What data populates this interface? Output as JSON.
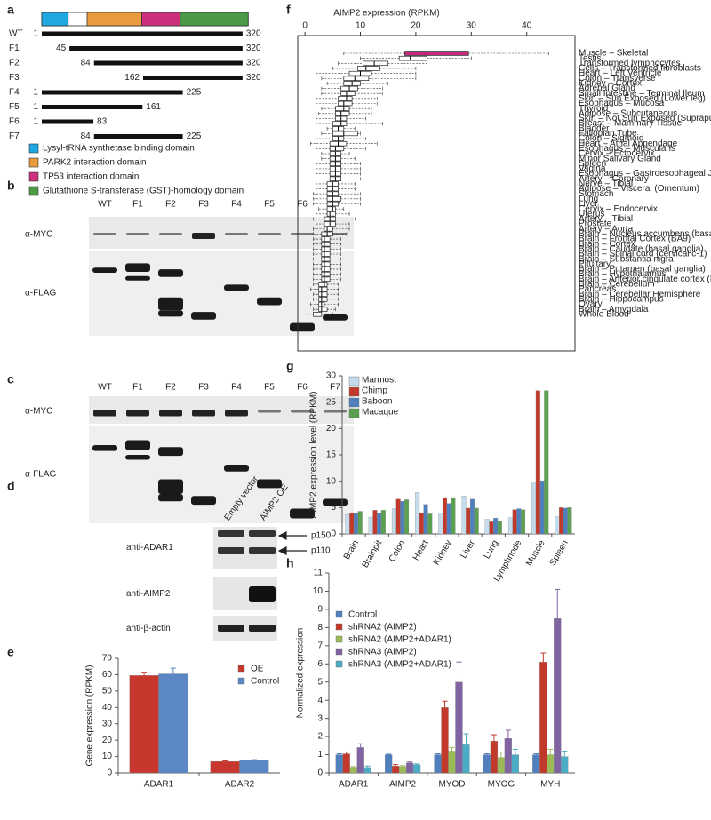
{
  "panel_labels": [
    "a",
    "b",
    "c",
    "d",
    "e",
    "f",
    "g",
    "h"
  ],
  "domain_map": {
    "domains": [
      {
        "name": "Lysyl-tRNA synthetase binding domain",
        "color": "#1ea7e1",
        "start": 1,
        "end": 43
      },
      {
        "name": "PARK2 interaction domain",
        "color": "#e89a3c",
        "start": 73,
        "end": 160
      },
      {
        "name": "TP53 interaction domain",
        "color": "#cc2f7c",
        "start": 160,
        "end": 221
      },
      {
        "name": "Glutathione S-transferase (GST)-homology domain",
        "color": "#4c9a47",
        "start": 221,
        "end": 329
      }
    ],
    "constructs": [
      {
        "name": "WT",
        "start": 1,
        "end": 320
      },
      {
        "name": "F1",
        "start": 45,
        "end": 320
      },
      {
        "name": "F2",
        "start": 84,
        "end": 320
      },
      {
        "name": "F3",
        "start": 162,
        "end": 320
      },
      {
        "name": "F4",
        "start": 1,
        "end": 225
      },
      {
        "name": "F5",
        "start": 1,
        "end": 161
      },
      {
        "name": "F6",
        "start": 1,
        "end": 83
      },
      {
        "name": "F7",
        "start": 84,
        "end": 225
      }
    ]
  },
  "blots": [
    {
      "lanes": [
        "WT",
        "F1",
        "F2",
        "F3",
        "F4",
        "F5",
        "F6",
        "F7"
      ],
      "rows": [
        "α-MYC",
        "α-FLAG"
      ]
    },
    {
      "lanes": [
        "WT",
        "F1",
        "F2",
        "F3",
        "F4",
        "F5",
        "F6",
        "F7"
      ],
      "rows": [
        "α-MYC",
        "α-FLAG"
      ]
    }
  ],
  "blot_d": {
    "conditions": [
      "Empty vector",
      "AIMP2 OE"
    ],
    "rows": [
      "anti-ADAR1",
      "anti-AIMP2",
      "anti-β-actin"
    ],
    "bands": [
      "p150",
      "p110"
    ]
  },
  "chart_data": [
    {
      "type": "bar",
      "ylabel": "Gene expression (RPKM)",
      "categories": [
        "ADAR1",
        "ADAR2"
      ],
      "series": [
        {
          "name": "OE",
          "color": "#c8372d",
          "values": [
            59.5,
            7.0
          ],
          "errors": [
            2,
            0.3
          ]
        },
        {
          "name": "Control",
          "color": "#5b88c4",
          "values": [
            60.5,
            7.8
          ],
          "errors": [
            3.5,
            0.3
          ]
        }
      ],
      "ylim": [
        0,
        70
      ],
      "yticks": [
        0,
        10,
        20,
        30,
        40,
        50,
        60,
        70
      ],
      "legend": "upper right"
    },
    {
      "type": "box",
      "xlabel": "AIMP2 expression (RPKM)",
      "categories": [
        "Muscle – Skeletal",
        "Testis",
        "Transformed lymphocytes",
        "Cells – Transformed fibroblasts",
        "Heart – Left Ventricle",
        "Colon – Transverse",
        "Kidney – Cortex",
        "Adrenal Gland",
        "Small Intestine – Terminal Ileum",
        "Skin – Sun Exposed (Lower leg)",
        "Esophagus – Mucosa",
        "Thyroid",
        "Adipose – Subcutaneous",
        "Skin – Not Sun Exposed (Suprapubic)",
        "Breast – Mammary Tissue",
        "Bladder",
        "Fallopian Tube",
        "Colon – Sigmoid",
        "Heart – Atrial Appendage",
        "Esophagus – Muscularis",
        "Cervix – Ectocervix",
        "Minor Salivary Gland",
        "Spleen",
        "Vagina",
        "Esophagus – Gastroesophageal Junction",
        "Artery – Coronary",
        "Nerve – Tibial",
        "Adipose – Visceral (Omentum)",
        "Stomach",
        "Lung",
        "Liver",
        "Cervix – Endocervix",
        "Uterus",
        "Artery – Tibial",
        "Prostate",
        "Artery – Aorta",
        "Brain – Nucleus accumbens (basal ganglia)",
        "Brain – Frontal Cortex (BA9)",
        "Brain – Cortex",
        "Brain – Caudate (basal ganglia)",
        "Brain – Spinal cord (cervical c-1)",
        "Brain – Substantia nigra",
        "Pituitary",
        "Brain – Putamen (basal ganglia)",
        "Brain – Hypothalamus",
        "Brain – Anterior cingulate cortex (BA24)",
        "Brain – Cerebellum",
        "Pancreas",
        "Brain – Cerebellar Hemisphere",
        "Brain – Hippocampus",
        "Ovary",
        "Brain – Amygdala",
        "Whole Blood"
      ],
      "whisker_low": [
        7,
        10,
        6,
        5,
        2,
        3,
        4,
        3,
        3,
        2,
        2,
        3,
        2.5,
        2,
        2,
        4,
        3,
        2,
        1,
        2,
        3,
        3,
        2,
        2,
        2,
        2,
        2,
        2,
        1.5,
        1.5,
        1.5,
        2.5,
        2,
        1.5,
        2,
        1.5,
        1.5,
        1.5,
        1.5,
        1.5,
        1.5,
        1.5,
        1.5,
        1.5,
        1.5,
        1.5,
        1.5,
        1,
        1.5,
        1.5,
        1,
        1.5,
        0.5
      ],
      "q1": [
        18,
        17,
        10.5,
        9.5,
        8,
        7,
        7,
        6.5,
        6.5,
        6,
        6,
        5.5,
        5.5,
        5.5,
        5,
        5,
        5,
        5,
        4.5,
        4.5,
        4.5,
        4.5,
        4.5,
        4.5,
        4.5,
        4.5,
        4,
        4,
        4,
        4,
        4,
        4,
        4,
        3.5,
        3.5,
        3.5,
        3,
        3,
        3,
        3,
        3,
        3,
        3,
        3,
        3,
        3,
        2.5,
        2.5,
        2.5,
        2.5,
        2.5,
        2.5,
        1.5
      ],
      "median": [
        22,
        19,
        12.5,
        11,
        10,
        9,
        8.5,
        8,
        7.5,
        7.5,
        7,
        7,
        6.5,
        6.5,
        6.5,
        6,
        7,
        6,
        6,
        5.5,
        5.5,
        5.5,
        5.5,
        5.5,
        5.5,
        5.5,
        5,
        5,
        5,
        5,
        5,
        5,
        4.5,
        4.5,
        4.5,
        4,
        4,
        3.5,
        3.5,
        3.5,
        3.5,
        3.5,
        3.5,
        3.5,
        3.5,
        3.5,
        3.5,
        3,
        3,
        3,
        3,
        3,
        2
      ],
      "q3": [
        29.5,
        22,
        15,
        13.5,
        12,
        11.5,
        10,
        9.5,
        9,
        8.5,
        8.5,
        8,
        8,
        7.5,
        7.5,
        7,
        9.5,
        7,
        7.5,
        7,
        6.5,
        6.5,
        6.5,
        6.5,
        6.5,
        6.5,
        6,
        6,
        6,
        6.5,
        6,
        5.5,
        5.5,
        5.5,
        5.5,
        5,
        5,
        4.5,
        4.5,
        4.5,
        4.5,
        4.5,
        4.5,
        4.5,
        4.5,
        4.5,
        4,
        4,
        4,
        4,
        3.5,
        4,
        3
      ],
      "whisker_high": [
        44,
        30,
        22,
        20,
        20,
        20,
        15,
        14,
        14,
        13,
        13,
        12,
        12,
        11,
        14,
        9,
        10,
        11,
        13,
        11,
        8,
        9,
        10,
        10,
        10,
        10,
        9,
        9,
        10,
        10,
        10,
        7,
        8,
        9,
        8,
        8,
        7.5,
        6.5,
        6.5,
        6.5,
        6.5,
        6.5,
        6.5,
        6.5,
        6.5,
        6.5,
        6,
        6,
        6,
        6,
        6,
        5.5,
        5
      ],
      "xlim": [
        -1.3,
        48.7
      ],
      "xticks": [
        0,
        10,
        20,
        30,
        40
      ],
      "box_color": "#ffffff",
      "highlight_category": "Muscle – Skeletal",
      "highlight_color": "#c8287f"
    },
    {
      "type": "bar",
      "ylabel": "AIMP2 expression level (RPKM)",
      "categories": [
        "Brain",
        "Brainpit",
        "Colon",
        "Heart",
        "Kidney",
        "Liver",
        "Lung",
        "Lymphnode",
        "Muscle",
        "Spleen"
      ],
      "series": [
        {
          "name": "Marmost",
          "color": "#c5dced",
          "values": [
            3.7,
            3.2,
            4.8,
            7.9,
            3.9,
            7.2,
            2.8,
            3.1,
            9.9,
            3.3
          ]
        },
        {
          "name": "Chimp",
          "color": "#c0392b",
          "values": [
            3.9,
            4.5,
            6.6,
            3.9,
            6.9,
            4.9,
            2.3,
            4.6,
            27.2,
            5.0
          ]
        },
        {
          "name": "Baboon",
          "color": "#4f7fbd",
          "values": [
            4.0,
            3.9,
            6.2,
            5.6,
            5.8,
            6.6,
            3.0,
            4.8,
            10.1,
            4.9
          ]
        },
        {
          "name": "Macaque",
          "color": "#5aa050",
          "values": [
            4.3,
            4.5,
            6.5,
            3.8,
            6.9,
            4.9,
            2.5,
            4.6,
            27.2,
            5.0
          ]
        }
      ],
      "ylim": [
        0,
        30
      ],
      "yticks": [
        0,
        5,
        10,
        15,
        20,
        25,
        30
      ],
      "legend": "upper left",
      "highlight_category": "Muscle",
      "highlight_color": "#c8287f"
    },
    {
      "type": "bar",
      "ylabel": "Normalized expression",
      "categories": [
        "ADAR1",
        "AIMP2",
        "MYOD",
        "MYOG",
        "MYH"
      ],
      "series": [
        {
          "name": "Control",
          "color": "#4f7fbd",
          "values": [
            1,
            1,
            1,
            1,
            1
          ],
          "errors": [
            0.05,
            0.03,
            0.05,
            0.05,
            0.05
          ]
        },
        {
          "name": "shRNA2 (AIMP2)",
          "color": "#c0392b",
          "values": [
            1.05,
            0.38,
            3.6,
            1.75,
            6.1
          ],
          "errors": [
            0.1,
            0.08,
            0.35,
            0.35,
            0.5
          ]
        },
        {
          "name": "shRNA2 (AIMP2+ADAR1)",
          "color": "#9bbb59",
          "values": [
            0.3,
            0.35,
            1.2,
            0.85,
            1.0
          ],
          "errors": [
            0.05,
            0.05,
            0.2,
            0.3,
            0.3
          ]
        },
        {
          "name": "shRNA3 (AIMP2)",
          "color": "#8064a2",
          "values": [
            1.4,
            0.55,
            5.0,
            1.9,
            8.5
          ],
          "errors": [
            0.2,
            0.05,
            1.1,
            0.45,
            1.6
          ]
        },
        {
          "name": "shRNA3 (AIMP2+ADAR1)",
          "color": "#4bacc6",
          "values": [
            0.3,
            0.45,
            1.55,
            1.0,
            0.9
          ],
          "errors": [
            0.08,
            0.05,
            0.6,
            0.3,
            0.3
          ]
        }
      ],
      "ylim": [
        0,
        11
      ],
      "yticks": [
        0,
        1,
        2,
        3,
        4,
        5,
        6,
        7,
        8,
        9,
        10,
        11
      ],
      "legend": "upper left"
    }
  ]
}
